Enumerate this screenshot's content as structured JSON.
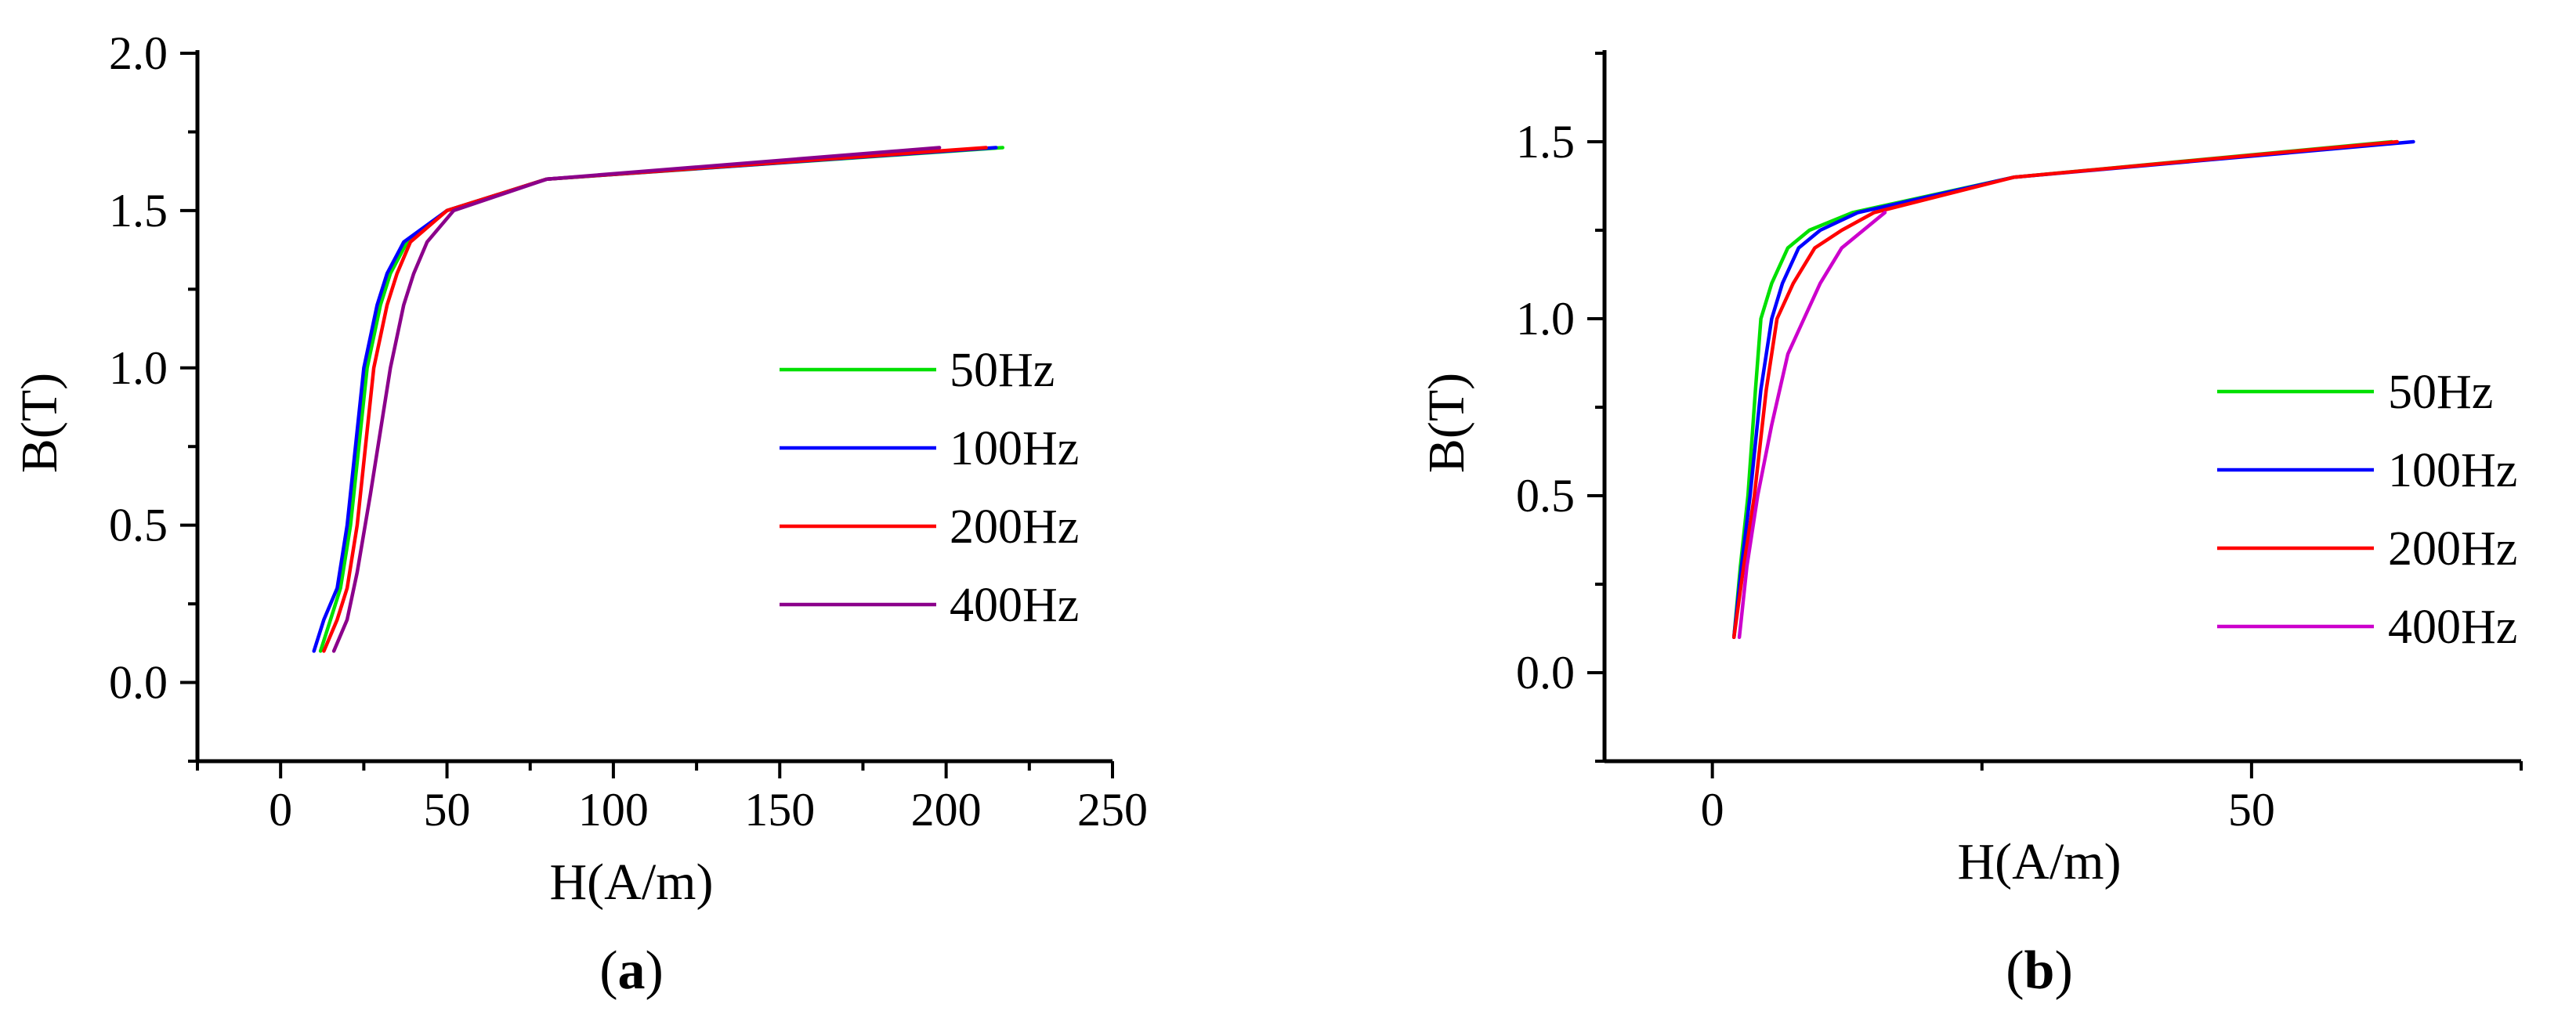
{
  "chart_data": [
    {
      "type": "line",
      "panel_label": "a",
      "xlabel": "H(A/m)",
      "ylabel": "B(T)",
      "xlim": [
        -25,
        250
      ],
      "ylim": [
        -0.25,
        2.0
      ],
      "xticks": [
        0,
        50,
        100,
        150,
        200,
        250
      ],
      "yticks": [
        0.0,
        0.5,
        1.0,
        1.5,
        2.0
      ],
      "xtick_labels": [
        "0",
        "50",
        "100",
        "150",
        "200",
        "250"
      ],
      "ytick_labels": [
        "0.0",
        "0.5",
        "1.0",
        "1.5",
        "2.0"
      ],
      "grid": false,
      "legend_position": "right",
      "series": [
        {
          "name": "50Hz",
          "color": "#00e000",
          "points": [
            [
              12,
              0.1
            ],
            [
              15,
              0.2
            ],
            [
              18,
              0.3
            ],
            [
              21,
              0.5
            ],
            [
              24,
              0.8
            ],
            [
              26,
              1.0
            ],
            [
              28,
              1.1
            ],
            [
              30,
              1.2
            ],
            [
              33,
              1.3
            ],
            [
              38,
              1.4
            ],
            [
              50,
              1.5
            ],
            [
              80,
              1.6
            ],
            [
              217,
              1.7
            ]
          ]
        },
        {
          "name": "100Hz",
          "color": "#0000ff",
          "points": [
            [
              10,
              0.1
            ],
            [
              13,
              0.2
            ],
            [
              17,
              0.3
            ],
            [
              20,
              0.5
            ],
            [
              23,
              0.8
            ],
            [
              25,
              1.0
            ],
            [
              27,
              1.1
            ],
            [
              29,
              1.2
            ],
            [
              32,
              1.3
            ],
            [
              37,
              1.4
            ],
            [
              50,
              1.5
            ],
            [
              80,
              1.6
            ],
            [
              215,
              1.7
            ]
          ]
        },
        {
          "name": "200Hz",
          "color": "#ff0000",
          "points": [
            [
              13,
              0.1
            ],
            [
              17,
              0.2
            ],
            [
              20,
              0.3
            ],
            [
              23,
              0.5
            ],
            [
              26,
              0.8
            ],
            [
              28,
              1.0
            ],
            [
              30,
              1.1
            ],
            [
              32,
              1.2
            ],
            [
              35,
              1.3
            ],
            [
              39,
              1.4
            ],
            [
              50,
              1.5
            ],
            [
              80,
              1.6
            ],
            [
              212,
              1.7
            ]
          ]
        },
        {
          "name": "400Hz",
          "color": "#8b008b",
          "points": [
            [
              16,
              0.1
            ],
            [
              20,
              0.2
            ],
            [
              23,
              0.35
            ],
            [
              27,
              0.6
            ],
            [
              30,
              0.8
            ],
            [
              33,
              1.0
            ],
            [
              35,
              1.1
            ],
            [
              37,
              1.2
            ],
            [
              40,
              1.3
            ],
            [
              44,
              1.4
            ],
            [
              52,
              1.5
            ],
            [
              80,
              1.6
            ],
            [
              198,
              1.7
            ]
          ]
        }
      ]
    },
    {
      "type": "line",
      "panel_label": "b",
      "xlabel": "H(A/m)",
      "ylabel": "B(T)",
      "xlim": [
        -10,
        75
      ],
      "ylim": [
        -0.25,
        1.75
      ],
      "xticks": [
        0,
        50
      ],
      "yticks": [
        0.0,
        0.5,
        1.0,
        1.5
      ],
      "xtick_labels": [
        "0",
        "50"
      ],
      "ytick_labels": [
        "0.0",
        "0.5",
        "1.0",
        "1.5"
      ],
      "grid": false,
      "legend_position": "bottom-right",
      "series": [
        {
          "name": "50Hz",
          "color": "#00e000",
          "points": [
            [
              2,
              0.1
            ],
            [
              2.6,
              0.3
            ],
            [
              3.3,
              0.5
            ],
            [
              4,
              0.8
            ],
            [
              4.5,
              1.0
            ],
            [
              5.5,
              1.1
            ],
            [
              7,
              1.2
            ],
            [
              9,
              1.25
            ],
            [
              13,
              1.3
            ],
            [
              28,
              1.4
            ],
            [
              63,
              1.5
            ]
          ]
        },
        {
          "name": "100Hz",
          "color": "#0000ff",
          "points": [
            [
              2,
              0.1
            ],
            [
              2.7,
              0.3
            ],
            [
              3.5,
              0.5
            ],
            [
              4.5,
              0.8
            ],
            [
              5.5,
              1.0
            ],
            [
              6.5,
              1.1
            ],
            [
              8,
              1.2
            ],
            [
              10,
              1.25
            ],
            [
              13.5,
              1.3
            ],
            [
              28,
              1.4
            ],
            [
              65,
              1.5
            ]
          ]
        },
        {
          "name": "200Hz",
          "color": "#ff0000",
          "points": [
            [
              2,
              0.1
            ],
            [
              2.9,
              0.3
            ],
            [
              3.9,
              0.5
            ],
            [
              5,
              0.8
            ],
            [
              6,
              1.0
            ],
            [
              7.5,
              1.1
            ],
            [
              9.5,
              1.2
            ],
            [
              12,
              1.25
            ],
            [
              15,
              1.3
            ],
            [
              28,
              1.4
            ],
            [
              63.5,
              1.5
            ]
          ]
        },
        {
          "name": "400Hz",
          "color": "#cc00cc",
          "points": [
            [
              2.5,
              0.1
            ],
            [
              3.2,
              0.3
            ],
            [
              4.2,
              0.5
            ],
            [
              5.5,
              0.7
            ],
            [
              7,
              0.9
            ],
            [
              8.5,
              1.0
            ],
            [
              10,
              1.1
            ],
            [
              12,
              1.2
            ],
            [
              16,
              1.3
            ]
          ]
        }
      ]
    }
  ]
}
